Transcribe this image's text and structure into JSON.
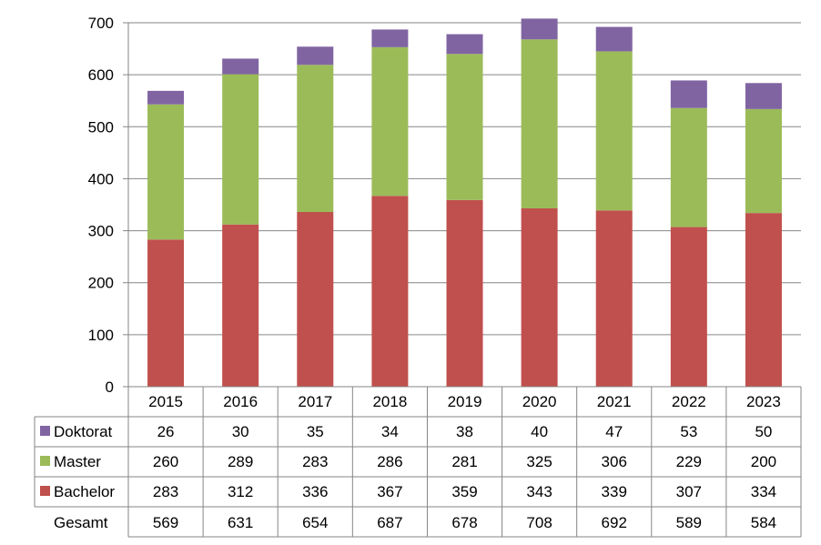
{
  "chart_data": {
    "type": "bar",
    "stacked": true,
    "title": "",
    "xlabel": "",
    "ylabel": "",
    "ylim": [
      0,
      700
    ],
    "yticks": [
      0,
      100,
      200,
      300,
      400,
      500,
      600,
      700
    ],
    "grid": true,
    "categories": [
      "2015",
      "2016",
      "2017",
      "2018",
      "2019",
      "2020",
      "2021",
      "2022",
      "2023"
    ],
    "series": [
      {
        "name": "Bachelor",
        "color": "#C0504D",
        "values": [
          283,
          312,
          336,
          367,
          359,
          343,
          339,
          307,
          334
        ]
      },
      {
        "name": "Master",
        "color": "#9BBB59",
        "values": [
          260,
          289,
          283,
          286,
          281,
          325,
          306,
          229,
          200
        ]
      },
      {
        "name": "Doktorat",
        "color": "#8064A2",
        "values": [
          26,
          30,
          35,
          34,
          38,
          40,
          47,
          53,
          50
        ]
      }
    ],
    "data_table": {
      "row_order": [
        "Doktorat",
        "Master",
        "Bachelor"
      ],
      "total_label": "Gesamt",
      "totals": [
        569,
        631,
        654,
        687,
        678,
        708,
        692,
        589,
        584
      ]
    }
  }
}
